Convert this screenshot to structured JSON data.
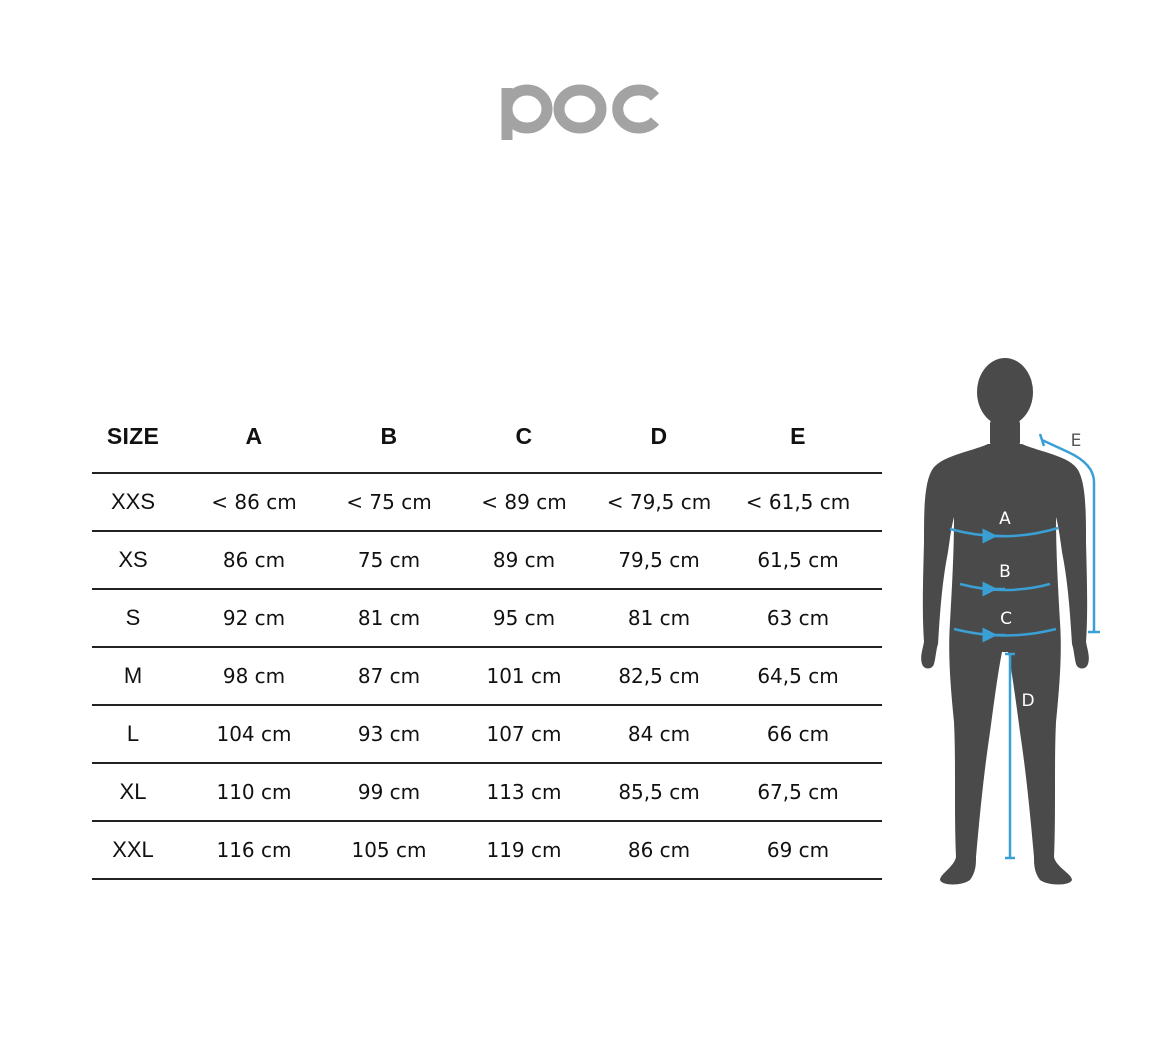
{
  "brand": {
    "logo_text": "poc",
    "logo_color": "#a3a3a3"
  },
  "table": {
    "headers": [
      "SIZE",
      "A",
      "B",
      "C",
      "D",
      "E"
    ],
    "rows": [
      [
        "XXS",
        "< 86 cm",
        "< 75 cm",
        "< 89 cm",
        "< 79,5 cm",
        "< 61,5 cm"
      ],
      [
        "XS",
        "86 cm",
        "75 cm",
        "89 cm",
        "79,5 cm",
        "61,5 cm"
      ],
      [
        "S",
        "92 cm",
        "81 cm",
        "95 cm",
        "81 cm",
        "63 cm"
      ],
      [
        "M",
        "98 cm",
        "87 cm",
        "101 cm",
        "82,5 cm",
        "64,5 cm"
      ],
      [
        "L",
        "104 cm",
        "93 cm",
        "107 cm",
        "84 cm",
        "66 cm"
      ],
      [
        "XL",
        "110 cm",
        "99 cm",
        "113 cm",
        "85,5 cm",
        "67,5 cm"
      ],
      [
        "XXL",
        "116 cm",
        "105 cm",
        "119 cm",
        "86 cm",
        "69 cm"
      ]
    ]
  },
  "figure": {
    "labels": {
      "a": "A",
      "b": "B",
      "c": "C",
      "d": "D",
      "e": "E"
    },
    "silhouette_color": "#4a4a4a",
    "measure_color": "#3a9fd4",
    "e_label_color": "#555555"
  }
}
